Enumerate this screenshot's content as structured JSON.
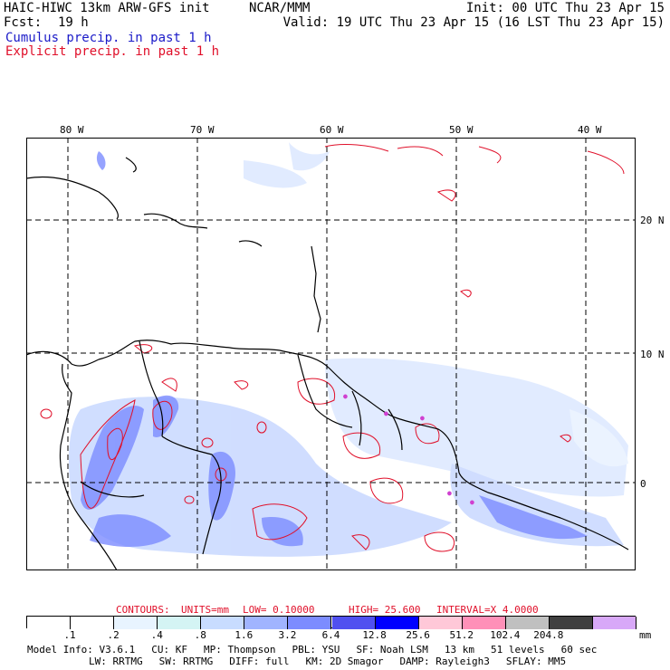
{
  "header": {
    "model": "HAIC-HIWC 13km ARW-GFS init",
    "agency": "NCAR/MMM",
    "init": "Init: 00 UTC Thu 23 Apr 15",
    "fcst_label": "Fcst:",
    "fcst_value": "19 h",
    "valid": "Valid: 19 UTC Thu 23 Apr 15 (16 LST Thu 23 Apr 15)",
    "cumulus": "Cumulus precip. in past 1 h",
    "explicit": "Explicit precip. in past 1 h"
  },
  "map": {
    "lon_labels": [
      "80 W",
      "70 W",
      "60 W",
      "50 W",
      "40 W"
    ],
    "lat_labels": [
      "20 N",
      "10 N",
      "0"
    ],
    "colors": {
      "contour": "#e0102a",
      "coast": "#000000",
      "grid": "#000000",
      "precip_blue": "#5a6ee8"
    }
  },
  "contours": {
    "label": "CONTOURS:",
    "units": "UNITS=mm",
    "low": "LOW= 0.10000",
    "high": "HIGH= 25.600",
    "interval": "INTERVAL=X 4.0000"
  },
  "colorbar": {
    "unit": "mm",
    "labels": [
      ".1",
      ".2",
      ".4",
      ".8",
      "1.6",
      "3.2",
      "6.4",
      "12.8",
      "25.6",
      "51.2",
      "102.4",
      "204.8"
    ],
    "colors": [
      "#ffffff",
      "#ffffff",
      "#e8f4ff",
      "#d4f4f4",
      "#c8dcff",
      "#a0b4ff",
      "#7c8cff",
      "#5050f0",
      "#0000ff",
      "#ffc8d8",
      "#ff90b8",
      "#c0c0c0",
      "#404040",
      "#d8a8f8"
    ]
  },
  "info": {
    "line1": [
      "Model Info: V3.6.1",
      "CU: KF",
      "MP: Thompson",
      "PBL: YSU",
      "SF: Noah LSM",
      "13 km",
      "51 levels",
      "60 sec"
    ],
    "line2": [
      "LW: RRTMG",
      "SW: RRTMG",
      "DIFF: full",
      "KM: 2D Smagor",
      "DAMP: Rayleigh3",
      "SFLAY: MM5"
    ]
  }
}
